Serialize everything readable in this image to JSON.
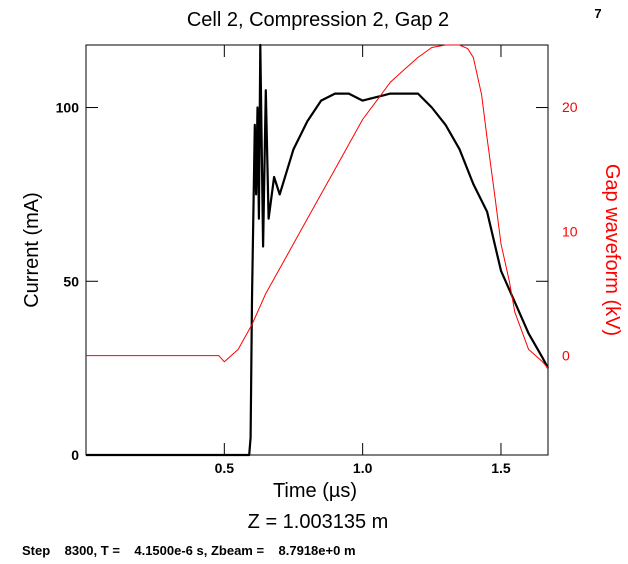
{
  "page_number": "7",
  "subtitle": "Z = 1.003135 m",
  "status_line": "Step    8300, T =    4.1500e-6 s, Zbeam =    8.7918e+0 m",
  "chart_data": {
    "type": "line",
    "title": "Cell 2, Compression 2, Gap 2",
    "xlabel": "Time (µs)",
    "ylabel": "Current (mA)",
    "y2label": "Gap waveform (kV)",
    "xlim": [
      0.0,
      1.67
    ],
    "ylim": [
      0,
      118
    ],
    "y2lim": [
      -8,
      25
    ],
    "grid": false,
    "xticks": [
      {
        "v": 0.5,
        "label": "0.5"
      },
      {
        "v": 1.0,
        "label": "1.0"
      },
      {
        "v": 1.5,
        "label": "1.5"
      }
    ],
    "yticks": [
      {
        "v": 0,
        "label": "0"
      },
      {
        "v": 50,
        "label": "50"
      },
      {
        "v": 100,
        "label": "100"
      }
    ],
    "y2ticks": [
      {
        "v": 0,
        "label": "0"
      },
      {
        "v": 10,
        "label": "10"
      },
      {
        "v": 20,
        "label": "20"
      }
    ],
    "colors": {
      "current": "#000000",
      "gap": "#ff0000"
    },
    "series": [
      {
        "axis": "left",
        "color": "#000000",
        "x": [
          0.0,
          0.59,
          0.595,
          0.6,
          0.605,
          0.61,
          0.615,
          0.62,
          0.625,
          0.63,
          0.64,
          0.65,
          0.66,
          0.68,
          0.7,
          0.75,
          0.8,
          0.85,
          0.9,
          0.95,
          1.0,
          1.05,
          1.1,
          1.15,
          1.2,
          1.25,
          1.3,
          1.35,
          1.4,
          1.45,
          1.5,
          1.55,
          1.6,
          1.65,
          1.67
        ],
        "y": [
          0,
          0,
          5,
          45,
          70,
          95,
          75,
          100,
          68,
          118,
          60,
          105,
          68,
          80,
          75,
          88,
          96,
          102,
          104,
          104,
          102,
          103,
          104,
          104,
          104,
          100,
          95,
          88,
          78,
          70,
          53,
          44,
          35,
          28,
          25
        ]
      },
      {
        "axis": "right",
        "color": "#ff0000",
        "x": [
          0.0,
          0.48,
          0.5,
          0.55,
          0.6,
          0.65,
          0.7,
          0.75,
          0.8,
          0.85,
          0.9,
          0.95,
          1.0,
          1.05,
          1.1,
          1.15,
          1.2,
          1.25,
          1.3,
          1.35,
          1.38,
          1.4,
          1.43,
          1.45,
          1.48,
          1.5,
          1.53,
          1.55,
          1.6,
          1.65,
          1.67
        ],
        "y": [
          0,
          0,
          -0.5,
          0.5,
          2.5,
          5.0,
          7.0,
          9.0,
          11.0,
          13.0,
          15.0,
          17.0,
          19.0,
          20.5,
          22.0,
          23.0,
          24.0,
          24.8,
          25.0,
          25.0,
          24.7,
          24.0,
          21.0,
          17.5,
          12.5,
          9.0,
          6.0,
          3.5,
          0.5,
          -0.5,
          -1.0
        ]
      }
    ]
  }
}
